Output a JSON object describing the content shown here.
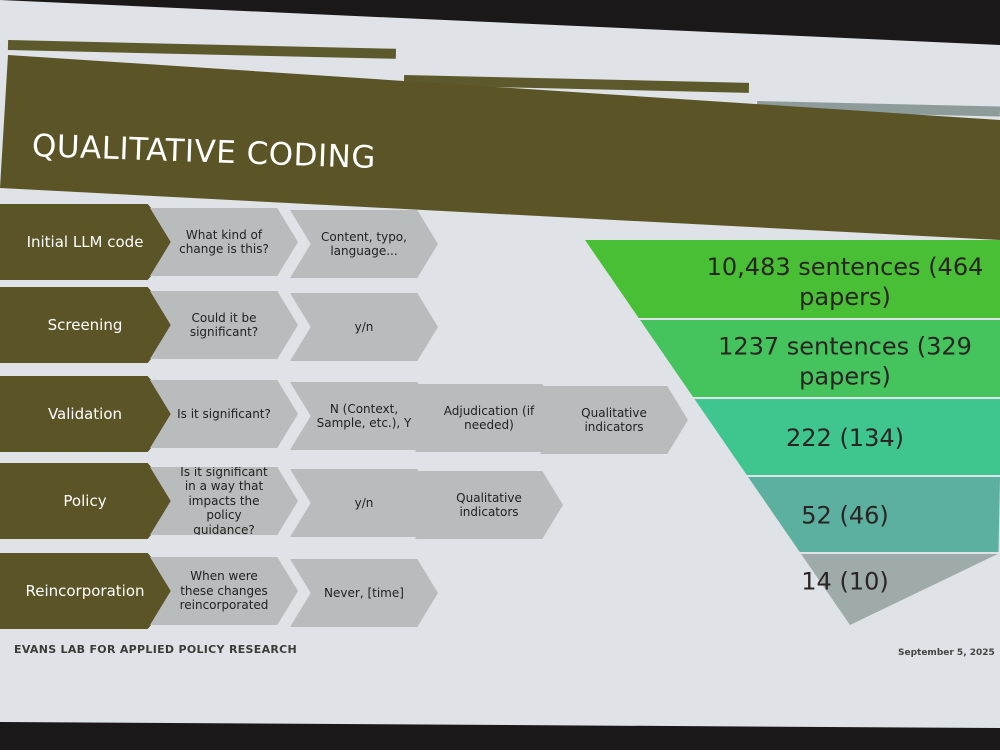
{
  "slide": {
    "title": "QUALITATIVE CODING",
    "footer": "EVANS LAB FOR APPLIED POLICY RESEARCH",
    "date": "September 5, 2025"
  },
  "rows": [
    {
      "stage": "Initial LLM code",
      "steps": [
        "What kind of change is this?",
        "Content, typo, language..."
      ]
    },
    {
      "stage": "Screening",
      "steps": [
        "Could it be significant?",
        "y/n"
      ]
    },
    {
      "stage": "Validation",
      "steps": [
        "Is it significant?",
        "N (Context, Sample, etc.), Y",
        "Adjudication (if needed)",
        "Qualitative indicators"
      ]
    },
    {
      "stage": "Policy",
      "steps": [
        "Is it significant in a way that impacts the policy guidance?",
        "y/n",
        "Qualitative indicators"
      ]
    },
    {
      "stage": "Reincorporation",
      "steps": [
        "When were these changes reincorporated",
        "Never, [time]"
      ]
    }
  ],
  "funnel": [
    {
      "line1": "10,483 sentences (464",
      "line2": "papers)",
      "color": "#49bf36"
    },
    {
      "line1": "1237 sentences (329",
      "line2": "papers)",
      "color": "#45c35c"
    },
    {
      "line1": "222 (134)",
      "line2": "",
      "color": "#3fc68f"
    },
    {
      "line1": "52 (46)",
      "line2": "",
      "color": "#5bb0a0"
    },
    {
      "line1": "14 (10)",
      "line2": "",
      "color": "#9eabaa"
    }
  ],
  "colors": {
    "olive": "#5a5427",
    "chevron_gray": "#b8bcbc",
    "background": "#dfe2e6"
  }
}
